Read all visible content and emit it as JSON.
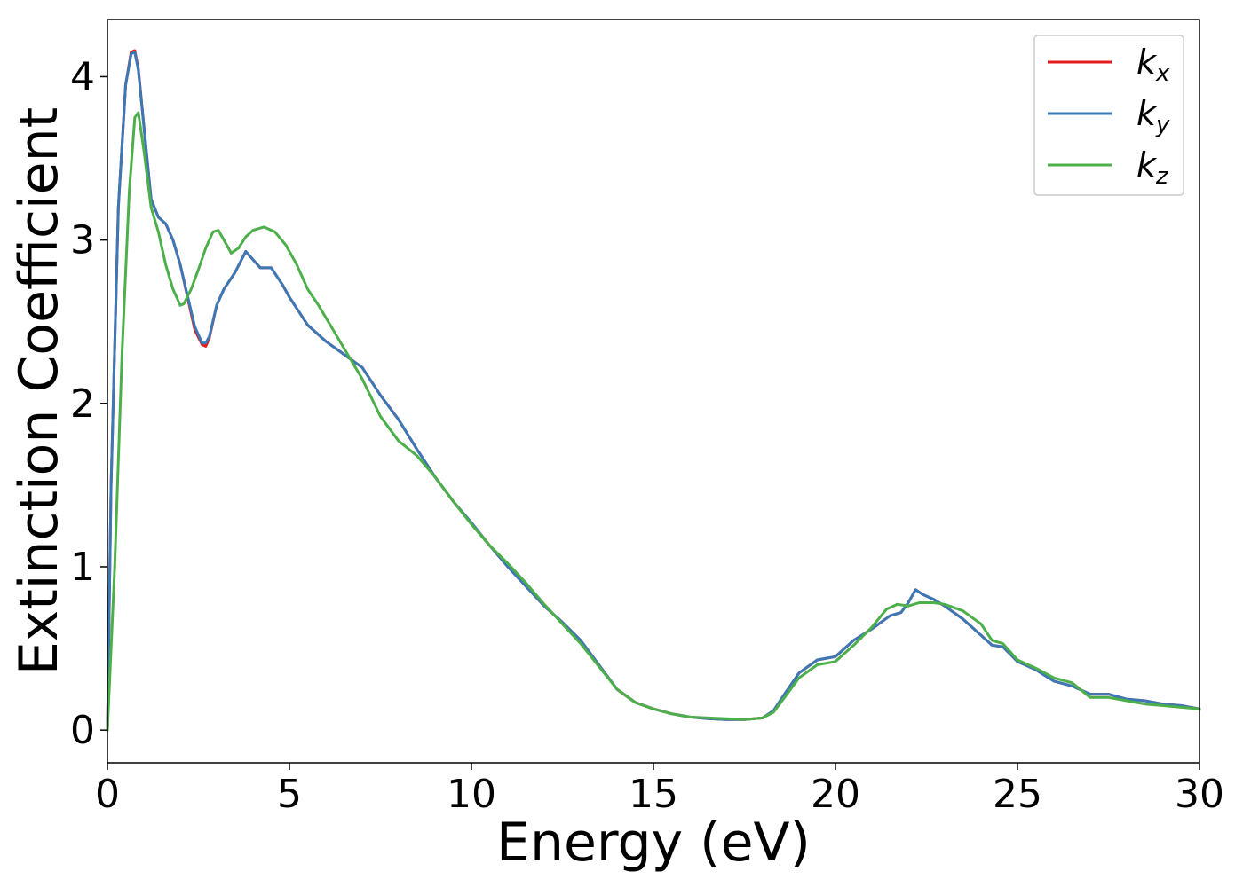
{
  "chart_data": {
    "type": "line",
    "title": "",
    "xlabel": "Energy (eV)",
    "ylabel": "Extinction Coefficient",
    "xlim": [
      0,
      30
    ],
    "ylim": [
      -0.2,
      4.35
    ],
    "xticks": [
      0,
      5,
      10,
      15,
      20,
      25,
      30
    ],
    "yticks": [
      0,
      1,
      2,
      3,
      4
    ],
    "grid": false,
    "legend_position": "top-right",
    "series": [
      {
        "name": "kx",
        "label_main": "k",
        "label_sub": "x",
        "color": "#e41a1c",
        "x": [
          0,
          0.1,
          0.3,
          0.5,
          0.65,
          0.75,
          0.85,
          1.0,
          1.2,
          1.4,
          1.6,
          1.8,
          2.0,
          2.2,
          2.4,
          2.6,
          2.7,
          2.8,
          3.0,
          3.2,
          3.5,
          3.8,
          4.0,
          4.2,
          4.5,
          4.8,
          5.0,
          5.5,
          6.0,
          6.5,
          7.0,
          7.5,
          8.0,
          8.5,
          9.0,
          9.5,
          10.0,
          10.5,
          11.0,
          11.5,
          12.0,
          12.5,
          13.0,
          13.5,
          14.0,
          14.5,
          15.0,
          15.5,
          16.0,
          16.5,
          17.0,
          17.5,
          18.0,
          18.3,
          18.6,
          19.0,
          19.5,
          20.0,
          20.5,
          21.0,
          21.5,
          21.8,
          22.0,
          22.2,
          22.4,
          22.7,
          23.0,
          23.5,
          24.0,
          24.3,
          24.6,
          25.0,
          25.5,
          26.0,
          26.5,
          27.0,
          27.5,
          28.0,
          28.5,
          29.0,
          29.5,
          30.0
        ],
        "y": [
          0.0,
          1.5,
          3.2,
          3.95,
          4.15,
          4.16,
          4.05,
          3.7,
          3.25,
          3.14,
          3.1,
          3.0,
          2.85,
          2.65,
          2.45,
          2.36,
          2.35,
          2.4,
          2.6,
          2.7,
          2.8,
          2.93,
          2.88,
          2.83,
          2.83,
          2.73,
          2.65,
          2.48,
          2.38,
          2.3,
          2.22,
          2.05,
          1.9,
          1.72,
          1.55,
          1.4,
          1.27,
          1.13,
          1.0,
          0.88,
          0.76,
          0.66,
          0.55,
          0.4,
          0.25,
          0.17,
          0.13,
          0.1,
          0.08,
          0.07,
          0.065,
          0.065,
          0.075,
          0.12,
          0.22,
          0.35,
          0.43,
          0.45,
          0.55,
          0.62,
          0.7,
          0.72,
          0.78,
          0.86,
          0.83,
          0.8,
          0.76,
          0.68,
          0.58,
          0.52,
          0.51,
          0.42,
          0.37,
          0.3,
          0.27,
          0.22,
          0.22,
          0.19,
          0.18,
          0.16,
          0.15,
          0.13
        ]
      },
      {
        "name": "ky",
        "label_main": "k",
        "label_sub": "y",
        "color": "#3b78b6",
        "x": [
          0,
          0.1,
          0.3,
          0.5,
          0.65,
          0.75,
          0.85,
          1.0,
          1.2,
          1.4,
          1.6,
          1.8,
          2.0,
          2.2,
          2.4,
          2.6,
          2.7,
          2.8,
          3.0,
          3.2,
          3.5,
          3.8,
          4.0,
          4.2,
          4.5,
          4.8,
          5.0,
          5.5,
          6.0,
          6.5,
          7.0,
          7.5,
          8.0,
          8.5,
          9.0,
          9.5,
          10.0,
          10.5,
          11.0,
          11.5,
          12.0,
          12.5,
          13.0,
          13.5,
          14.0,
          14.5,
          15.0,
          15.5,
          16.0,
          16.5,
          17.0,
          17.5,
          18.0,
          18.3,
          18.6,
          19.0,
          19.5,
          20.0,
          20.5,
          21.0,
          21.5,
          21.8,
          22.0,
          22.2,
          22.4,
          22.7,
          23.0,
          23.5,
          24.0,
          24.3,
          24.6,
          25.0,
          25.5,
          26.0,
          26.5,
          27.0,
          27.5,
          28.0,
          28.5,
          29.0,
          29.5,
          30.0
        ],
        "y": [
          0.0,
          1.5,
          3.2,
          3.95,
          4.14,
          4.15,
          4.04,
          3.7,
          3.25,
          3.14,
          3.1,
          3.0,
          2.85,
          2.66,
          2.47,
          2.37,
          2.37,
          2.41,
          2.6,
          2.7,
          2.8,
          2.93,
          2.88,
          2.83,
          2.83,
          2.73,
          2.65,
          2.48,
          2.38,
          2.3,
          2.22,
          2.05,
          1.9,
          1.72,
          1.55,
          1.4,
          1.27,
          1.13,
          1.0,
          0.88,
          0.76,
          0.66,
          0.55,
          0.4,
          0.25,
          0.17,
          0.13,
          0.1,
          0.08,
          0.07,
          0.065,
          0.065,
          0.075,
          0.12,
          0.22,
          0.35,
          0.43,
          0.45,
          0.55,
          0.62,
          0.7,
          0.72,
          0.78,
          0.86,
          0.83,
          0.8,
          0.76,
          0.68,
          0.58,
          0.52,
          0.51,
          0.42,
          0.37,
          0.3,
          0.27,
          0.22,
          0.22,
          0.19,
          0.18,
          0.16,
          0.15,
          0.13
        ]
      },
      {
        "name": "kz",
        "label_main": "k",
        "label_sub": "z",
        "color": "#4daf4a",
        "x": [
          0,
          0.2,
          0.4,
          0.6,
          0.75,
          0.85,
          1.0,
          1.2,
          1.4,
          1.6,
          1.8,
          2.0,
          2.1,
          2.3,
          2.5,
          2.7,
          2.9,
          3.05,
          3.2,
          3.4,
          3.6,
          3.8,
          4.0,
          4.3,
          4.6,
          4.9,
          5.2,
          5.5,
          5.8,
          6.2,
          6.6,
          7.0,
          7.5,
          8.0,
          8.5,
          9.0,
          9.5,
          10.0,
          10.5,
          11.0,
          11.5,
          12.0,
          12.5,
          13.0,
          13.5,
          14.0,
          14.5,
          15.0,
          15.5,
          16.0,
          16.5,
          17.0,
          17.5,
          18.0,
          18.3,
          18.6,
          19.0,
          19.5,
          20.0,
          20.5,
          21.0,
          21.4,
          21.7,
          22.0,
          22.3,
          22.7,
          23.0,
          23.5,
          24.0,
          24.3,
          24.6,
          25.0,
          25.5,
          26.0,
          26.5,
          27.0,
          27.5,
          28.0,
          28.5,
          29.0,
          29.5,
          30.0
        ],
        "y": [
          0.0,
          1.0,
          2.3,
          3.3,
          3.75,
          3.78,
          3.55,
          3.2,
          3.05,
          2.85,
          2.7,
          2.6,
          2.61,
          2.7,
          2.82,
          2.95,
          3.05,
          3.06,
          3.0,
          2.92,
          2.95,
          3.02,
          3.06,
          3.08,
          3.05,
          2.97,
          2.85,
          2.7,
          2.6,
          2.45,
          2.3,
          2.15,
          1.92,
          1.77,
          1.68,
          1.55,
          1.4,
          1.26,
          1.13,
          1.02,
          0.9,
          0.77,
          0.65,
          0.53,
          0.39,
          0.25,
          0.17,
          0.13,
          0.1,
          0.08,
          0.075,
          0.07,
          0.065,
          0.075,
          0.11,
          0.2,
          0.32,
          0.4,
          0.42,
          0.52,
          0.63,
          0.74,
          0.77,
          0.76,
          0.78,
          0.78,
          0.77,
          0.73,
          0.65,
          0.55,
          0.53,
          0.43,
          0.38,
          0.32,
          0.29,
          0.2,
          0.2,
          0.18,
          0.16,
          0.15,
          0.14,
          0.13
        ]
      }
    ]
  }
}
